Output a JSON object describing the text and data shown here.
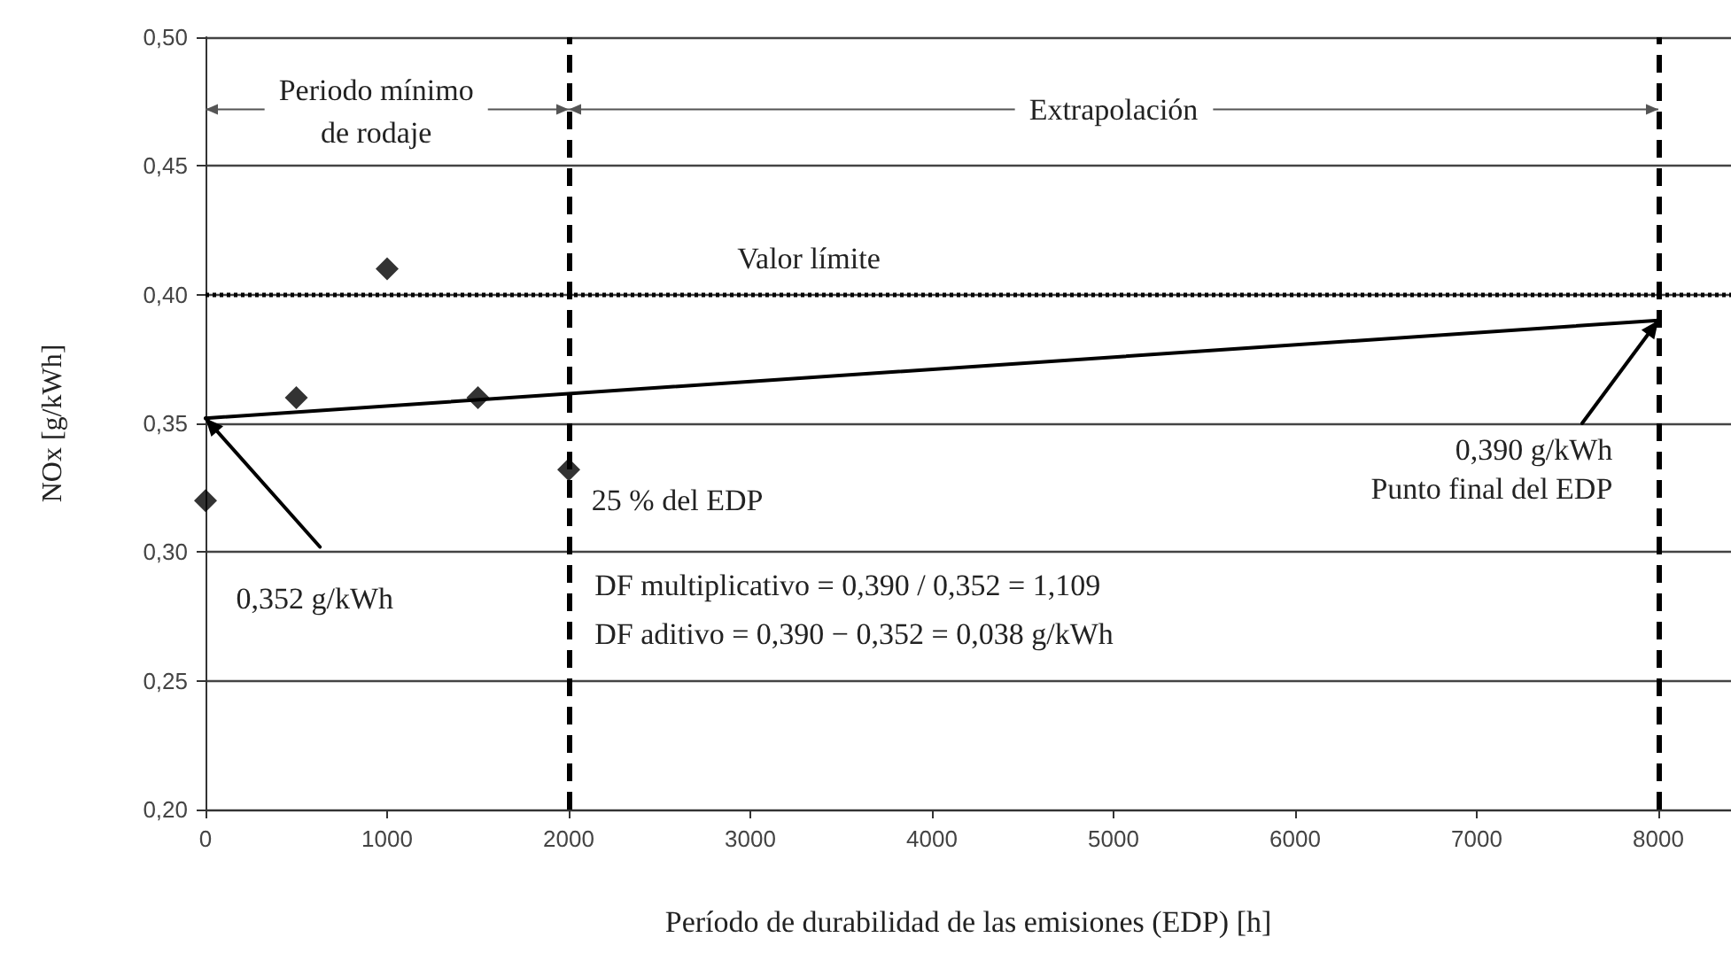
{
  "chart_data": {
    "type": "scatter",
    "xlabel": "Período de durabilidad de las emisiones (EDP) [h]",
    "ylabel": "NOx [g/kWh]",
    "xlim": [
      0,
      8400
    ],
    "xticks": [
      0,
      1000,
      2000,
      3000,
      4000,
      5000,
      6000,
      7000,
      8000
    ],
    "ylim": [
      0.2,
      0.5
    ],
    "yticks": [
      {
        "value": 0.2,
        "label": "0,20"
      },
      {
        "value": 0.25,
        "label": "0,25"
      },
      {
        "value": 0.3,
        "label": "0,30"
      },
      {
        "value": 0.35,
        "label": "0,35"
      },
      {
        "value": 0.4,
        "label": "0,40"
      },
      {
        "value": 0.45,
        "label": "0,45"
      },
      {
        "value": 0.5,
        "label": "0,50"
      }
    ],
    "grid": "y",
    "series": [
      {
        "color": "#000000",
        "marker": "diamond",
        "x": [
          0,
          500,
          1000,
          1500,
          2000
        ],
        "values": [
          0.32,
          0.36,
          0.41,
          0.36,
          0.332
        ]
      },
      {
        "type": "line",
        "color": "#000000",
        "marker": "none",
        "line_style": "solid",
        "x": [
          0,
          8000
        ],
        "values": [
          0.352,
          0.39
        ]
      }
    ],
    "ref_lines": [
      {
        "axis": "y",
        "value": 0.4,
        "label": "Valor límite",
        "color": "#000000",
        "line_style": "dotted"
      },
      {
        "axis": "x",
        "value": 2000,
        "label": null,
        "color": "#000000",
        "line_style": "dashed"
      },
      {
        "axis": "x",
        "value": 8000,
        "label": null,
        "color": "#000000",
        "line_style": "dashed"
      }
    ],
    "annotations": [
      {
        "text": "Periodo mínimo de rodaje",
        "x": 2000,
        "y": 0.472
      },
      {
        "text": "Extrapolación",
        "x": 8000,
        "y": 0.472
      },
      {
        "text": "0,352 g/kWh",
        "x": 0,
        "y": 0.352
      },
      {
        "text": "0,390 g/kWh\nPunto final del EDP",
        "x": 8000,
        "y": 0.39
      },
      {
        "text": "25 % del EDP",
        "x": 2000,
        "y": 0.332
      },
      "DF multiplicativo = 0,390 / 0,352 = 1,109",
      "DF aditivo = 0,390 − 0,352 = 0,038 g/kWh"
    ]
  }
}
